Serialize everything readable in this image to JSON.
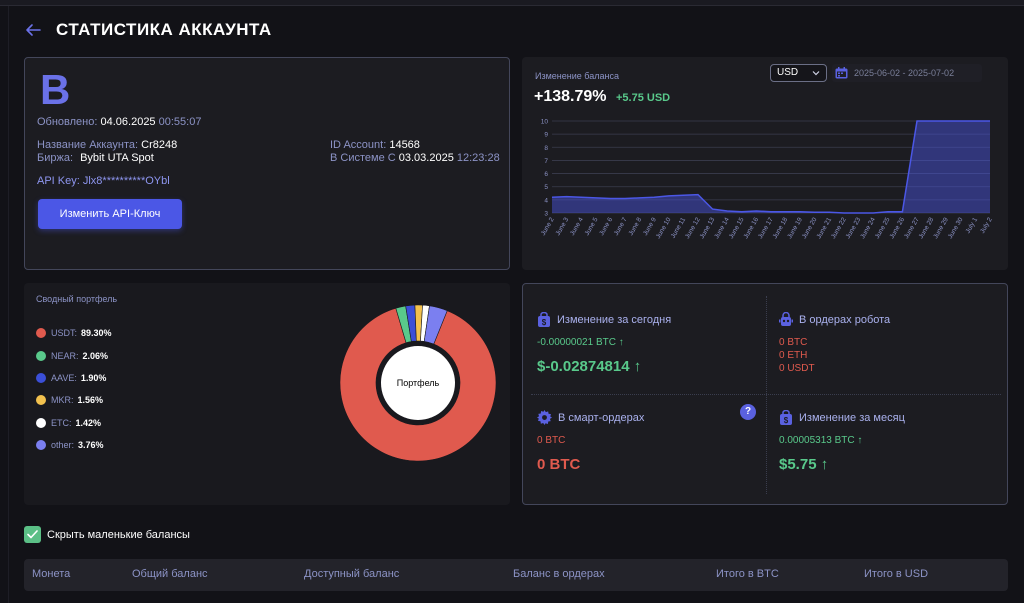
{
  "header": {
    "title": "СТАТИСТИКА АККАУНТА"
  },
  "account": {
    "letter": "B",
    "updated_label": "Обновлено:",
    "updated_date": "04.06.2025",
    "updated_time": "00:55:07",
    "name_label": "Название Аккаунта:",
    "name_value": "Cr8248",
    "exchange_label": "Биржа:",
    "exchange_value": "Bybit UTA Spot",
    "id_label": "ID Account:",
    "id_value": "14568",
    "since_label": "В Системе С",
    "since_date": "03.03.2025",
    "since_time": "12:23:28",
    "api_key": "API Key: Jlx8**********OYbl",
    "change_api_button": "Изменить API-Ключ"
  },
  "balance": {
    "title": "Изменение баланса",
    "percent": "+138.79%",
    "usd_change": "+5.75 USD",
    "currency_select": "USD",
    "date_range": "2025-06-02 - 2025-07-02"
  },
  "chart_data": {
    "type": "area",
    "x": [
      "June 2",
      "June 3",
      "June 4",
      "June 5",
      "June 6",
      "June 7",
      "June 8",
      "June 9",
      "June 10",
      "June 11",
      "June 12",
      "June 13",
      "June 14",
      "June 15",
      "June 16",
      "June 17",
      "June 18",
      "June 19",
      "June 20",
      "June 21",
      "June 22",
      "June 23",
      "June 24",
      "June 25",
      "June 26",
      "June 27",
      "June 28",
      "June 29",
      "June 30",
      "July 1",
      "July 2"
    ],
    "values": [
      4.2,
      4.25,
      4.2,
      4.15,
      4.1,
      4.1,
      4.15,
      4.2,
      4.3,
      4.35,
      4.4,
      3.3,
      3.15,
      3.1,
      3.15,
      3.1,
      3.1,
      3.1,
      3.05,
      3.05,
      3.0,
      3.0,
      3.0,
      3.1,
      3.1,
      10.0,
      10.0,
      10.0,
      10.0,
      10.0,
      10.0
    ],
    "yticks": [
      3,
      4,
      5,
      6,
      7,
      8,
      9,
      10
    ],
    "ylim": [
      3,
      10
    ],
    "grid": true,
    "color": "#4b57e6"
  },
  "portfolio": {
    "title": "Сводный портфель",
    "center_label": "Портфель",
    "items": [
      {
        "name": "USDT:",
        "pct": "89.30%",
        "value": 89.3,
        "color": "#e05a4e"
      },
      {
        "name": "NEAR:",
        "pct": "2.06%",
        "value": 2.06,
        "color": "#59c98b"
      },
      {
        "name": "AAVE:",
        "pct": "1.90%",
        "value": 1.9,
        "color": "#3b4fd8"
      },
      {
        "name": "MKR:",
        "pct": "1.56%",
        "value": 1.56,
        "color": "#f2c14e"
      },
      {
        "name": "ETC:",
        "pct": "1.42%",
        "value": 1.42,
        "color": "#ffffff"
      },
      {
        "name": "other:",
        "pct": "3.76%",
        "value": 3.76,
        "color": "#7b7ff0"
      }
    ]
  },
  "stats": {
    "today_title": "Изменение за сегодня",
    "today_btc": "-0.00000021 BTC ↑",
    "today_usd": "$-0.02874814 ↑",
    "robot_title": "В ордерах робота",
    "robot_btc": "0 BTC",
    "robot_eth": "0 ETH",
    "robot_usdt": "0 USDT",
    "smart_title": "В смарт-ордерах",
    "smart_btc_small": "0 BTC",
    "smart_btc_big": "0 BTC",
    "help": "?",
    "month_title": "Изменение за месяц",
    "month_btc": "0.00005313 BTC ↑",
    "month_usd": "$5.75 ↑"
  },
  "options": {
    "hide_small_label": "Скрыть маленькие балансы"
  },
  "table": {
    "columns": [
      "Монета",
      "Общий баланс",
      "Доступный баланс",
      "Баланс в ордерах",
      "Итого в BTC",
      "Итого в USD"
    ]
  }
}
